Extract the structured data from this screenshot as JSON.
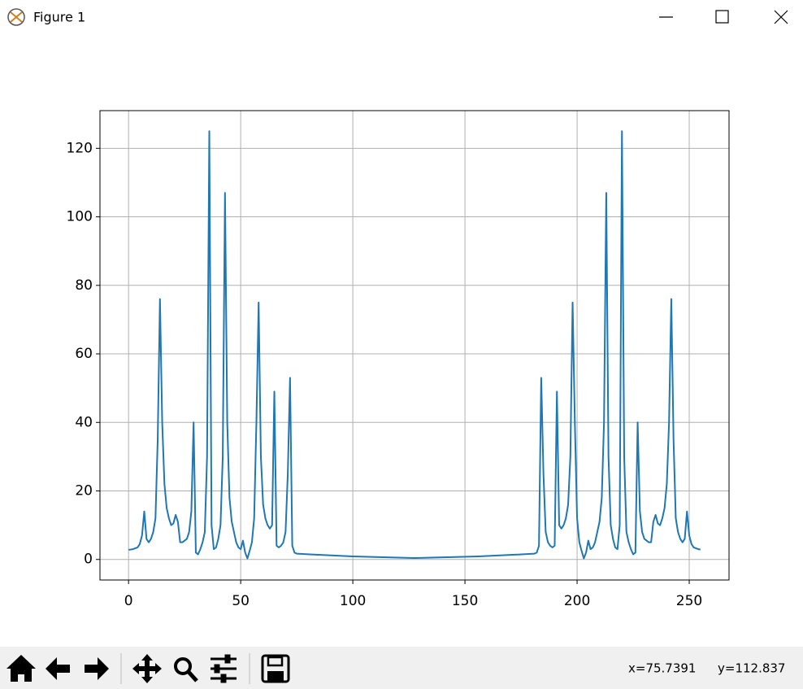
{
  "window": {
    "title": "Figure 1",
    "status_x": "x=75.7391",
    "status_y": "y=112.837"
  },
  "chart_data": {
    "type": "line",
    "color": "#1f77b4",
    "grid": true,
    "x": [
      0,
      2,
      4,
      5,
      6,
      7,
      8,
      9,
      10,
      11,
      12,
      13,
      14,
      15,
      16,
      17,
      18,
      19,
      20,
      21,
      22,
      23,
      24,
      25,
      26,
      27,
      28,
      29,
      30,
      31,
      32,
      33,
      34,
      35,
      36,
      37,
      38,
      39,
      40,
      41,
      42,
      43,
      44,
      45,
      46,
      47,
      48,
      49,
      50,
      51,
      52,
      53,
      54,
      55,
      56,
      57,
      58,
      59,
      60,
      61,
      62,
      63,
      64,
      65,
      66,
      67,
      68,
      69,
      70,
      71,
      72,
      73,
      74,
      75,
      80,
      100,
      128,
      156,
      176,
      181,
      182,
      183,
      184,
      185,
      186,
      187,
      188,
      189,
      190,
      191,
      192,
      193,
      194,
      195,
      196,
      197,
      198,
      199,
      200,
      201,
      202,
      203,
      204,
      205,
      206,
      207,
      208,
      209,
      210,
      211,
      212,
      213,
      214,
      215,
      216,
      217,
      218,
      219,
      220,
      221,
      222,
      223,
      224,
      225,
      226,
      227,
      228,
      229,
      230,
      231,
      232,
      233,
      234,
      235,
      236,
      237,
      238,
      239,
      240,
      241,
      242,
      243,
      244,
      245,
      246,
      247,
      248,
      249,
      250,
      251,
      252,
      254,
      255
    ],
    "values": [
      2.8,
      3.0,
      3.5,
      4.5,
      7,
      14,
      6,
      5,
      6,
      8,
      12,
      35,
      76,
      40,
      22,
      15,
      12,
      10,
      10.5,
      13,
      11,
      5,
      5,
      5.5,
      6,
      8,
      14,
      40,
      2,
      1.5,
      3,
      5,
      8,
      30,
      125,
      10,
      3,
      3.5,
      6,
      10,
      30,
      107,
      40,
      18,
      11,
      8,
      5,
      3.5,
      3,
      5.5,
      2,
      0.3,
      2.5,
      5,
      12,
      40,
      75,
      30,
      16,
      12,
      10,
      9,
      10,
      49,
      4,
      3.5,
      4,
      5,
      8,
      25,
      53,
      4,
      2,
      1.7,
      1.5,
      0.9,
      0.4,
      0.9,
      1.5,
      1.7,
      2,
      4,
      53,
      25,
      8,
      5,
      4,
      3.5,
      4,
      49,
      10,
      9,
      10,
      12,
      16,
      30,
      75,
      40,
      12,
      5,
      2.5,
      0.3,
      2,
      5.5,
      3,
      3.5,
      5,
      8,
      11,
      18,
      40,
      107,
      30,
      10,
      6,
      3.5,
      3,
      10,
      125,
      30,
      8,
      5,
      3,
      1.5,
      2,
      40,
      14,
      8,
      6,
      5.5,
      5,
      5,
      11,
      13,
      10.5,
      10,
      12,
      15,
      22,
      40,
      76,
      35,
      12,
      8,
      6,
      5,
      6,
      14,
      7,
      4.5,
      3.5,
      3.0,
      2.9
    ],
    "xlim": [
      -12.75,
      267.75
    ],
    "ylim": [
      -6,
      131
    ],
    "xticks": [
      0,
      50,
      100,
      150,
      200,
      250
    ],
    "yticks": [
      0,
      20,
      40,
      60,
      80,
      100,
      120
    ]
  }
}
